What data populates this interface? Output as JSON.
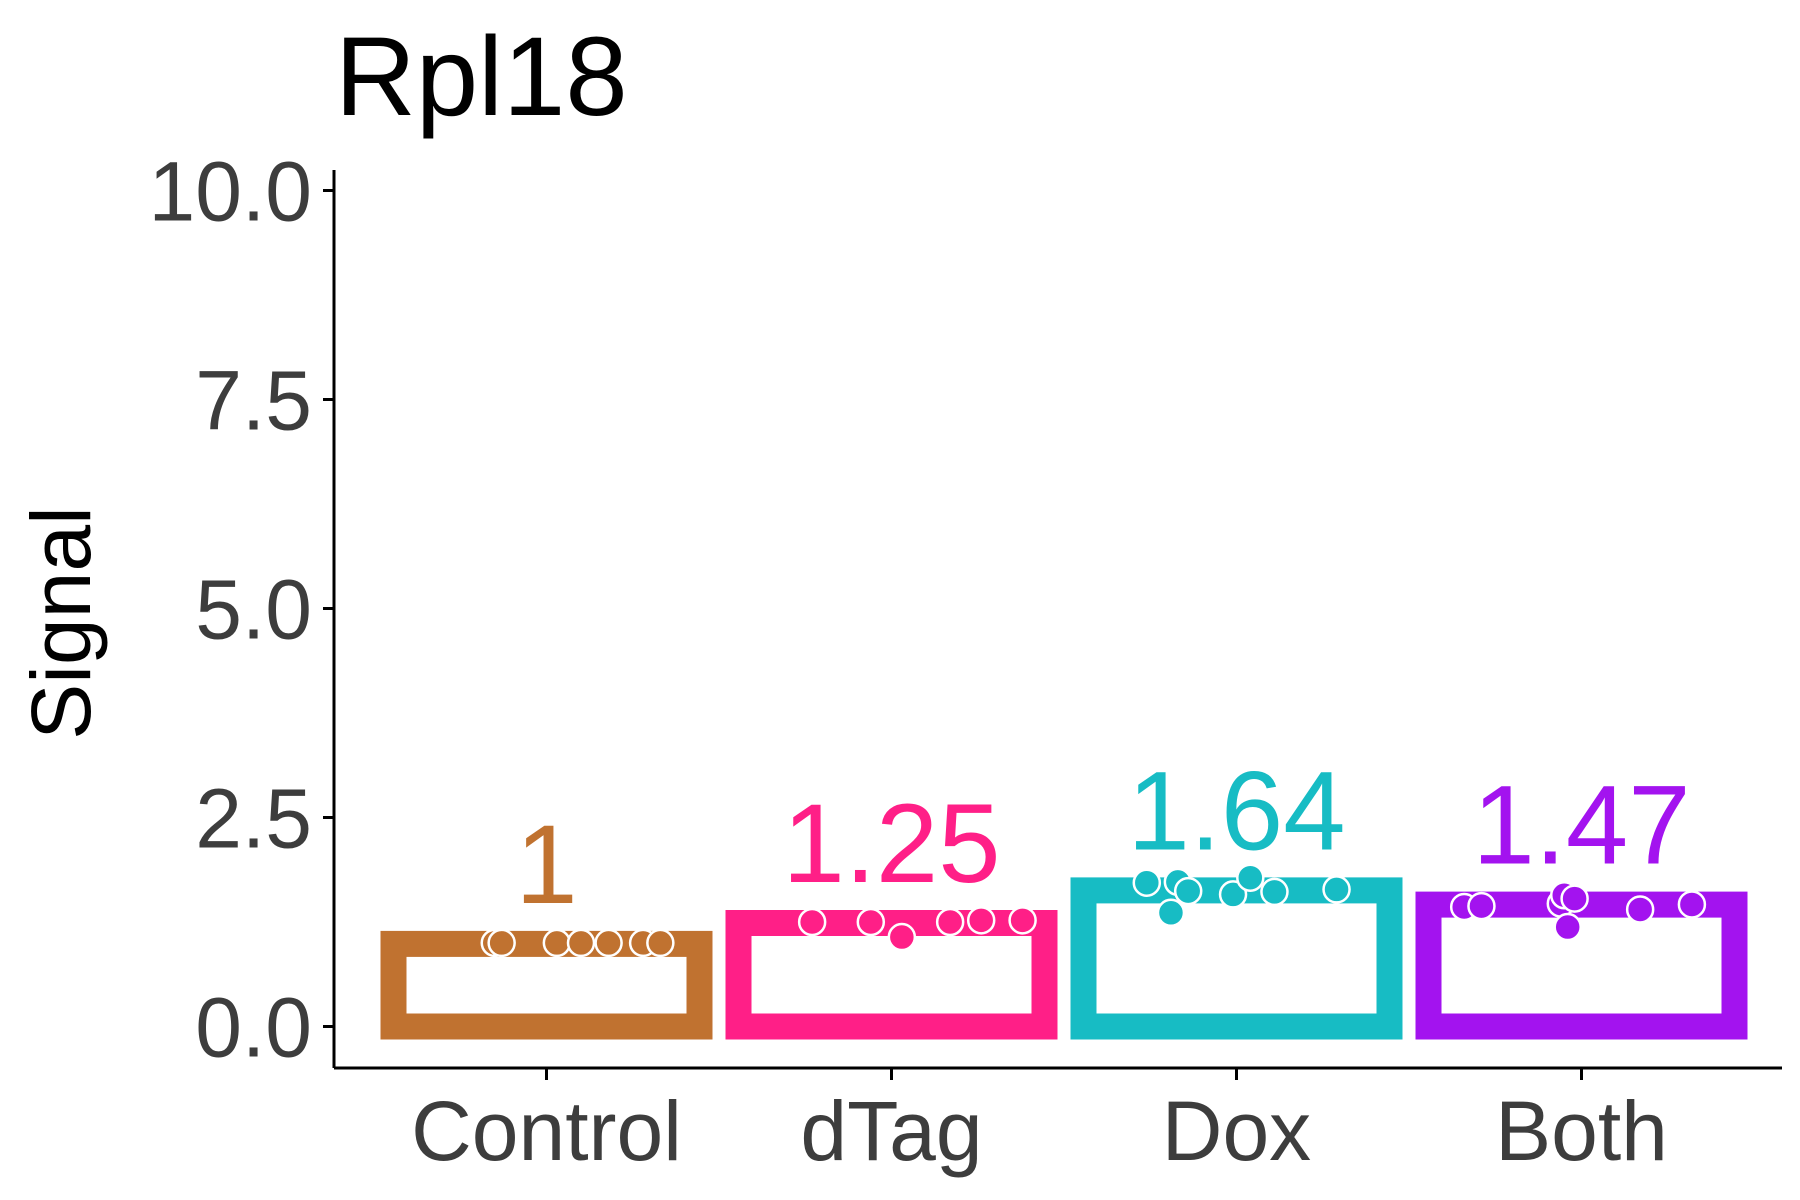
{
  "chart_data": {
    "type": "bar",
    "title": "Rpl18",
    "xlabel": "",
    "ylabel": "Signal",
    "ylim": [
      -0.5,
      10.5
    ],
    "yticks": [
      0.0,
      2.5,
      5.0,
      7.5,
      10.0
    ],
    "ytick_labels": [
      "0.0",
      "2.5",
      "5.0",
      "7.5",
      "10.0"
    ],
    "grid": false,
    "legend": "none",
    "categories": [
      "Control",
      "dTag",
      "Dox",
      "Both"
    ],
    "values": [
      1.0,
      1.25,
      1.64,
      1.47
    ],
    "value_labels": [
      "1",
      "1.25",
      "1.64",
      "1.47"
    ],
    "colors": [
      "#c07230",
      "#ff1f87",
      "#17bcc4",
      "#a313ef"
    ],
    "bar_style": "hollow",
    "points": [
      [
        {
          "x": -0.15,
          "y": 1.0
        },
        {
          "x": -0.13,
          "y": 1.0
        },
        {
          "x": 0.03,
          "y": 1.0
        },
        {
          "x": 0.1,
          "y": 1.0
        },
        {
          "x": 0.18,
          "y": 1.0
        },
        {
          "x": 0.28,
          "y": 1.0
        },
        {
          "x": 0.33,
          "y": 1.0
        }
      ],
      [
        {
          "x": -0.23,
          "y": 1.25
        },
        {
          "x": -0.06,
          "y": 1.25
        },
        {
          "x": 0.03,
          "y": 1.07
        },
        {
          "x": 0.17,
          "y": 1.25
        },
        {
          "x": 0.26,
          "y": 1.27
        },
        {
          "x": 0.38,
          "y": 1.27
        }
      ],
      [
        {
          "x": -0.26,
          "y": 1.72
        },
        {
          "x": -0.19,
          "y": 1.36
        },
        {
          "x": -0.17,
          "y": 1.73
        },
        {
          "x": -0.14,
          "y": 1.62
        },
        {
          "x": -0.01,
          "y": 1.58
        },
        {
          "x": 0.04,
          "y": 1.78
        },
        {
          "x": 0.11,
          "y": 1.61
        },
        {
          "x": 0.29,
          "y": 1.64
        }
      ],
      [
        {
          "x": -0.34,
          "y": 1.43
        },
        {
          "x": -0.29,
          "y": 1.44
        },
        {
          "x": -0.06,
          "y": 1.47
        },
        {
          "x": -0.05,
          "y": 1.57
        },
        {
          "x": -0.04,
          "y": 1.19
        },
        {
          "x": -0.02,
          "y": 1.53
        },
        {
          "x": 0.17,
          "y": 1.4
        },
        {
          "x": 0.32,
          "y": 1.46
        }
      ]
    ]
  }
}
